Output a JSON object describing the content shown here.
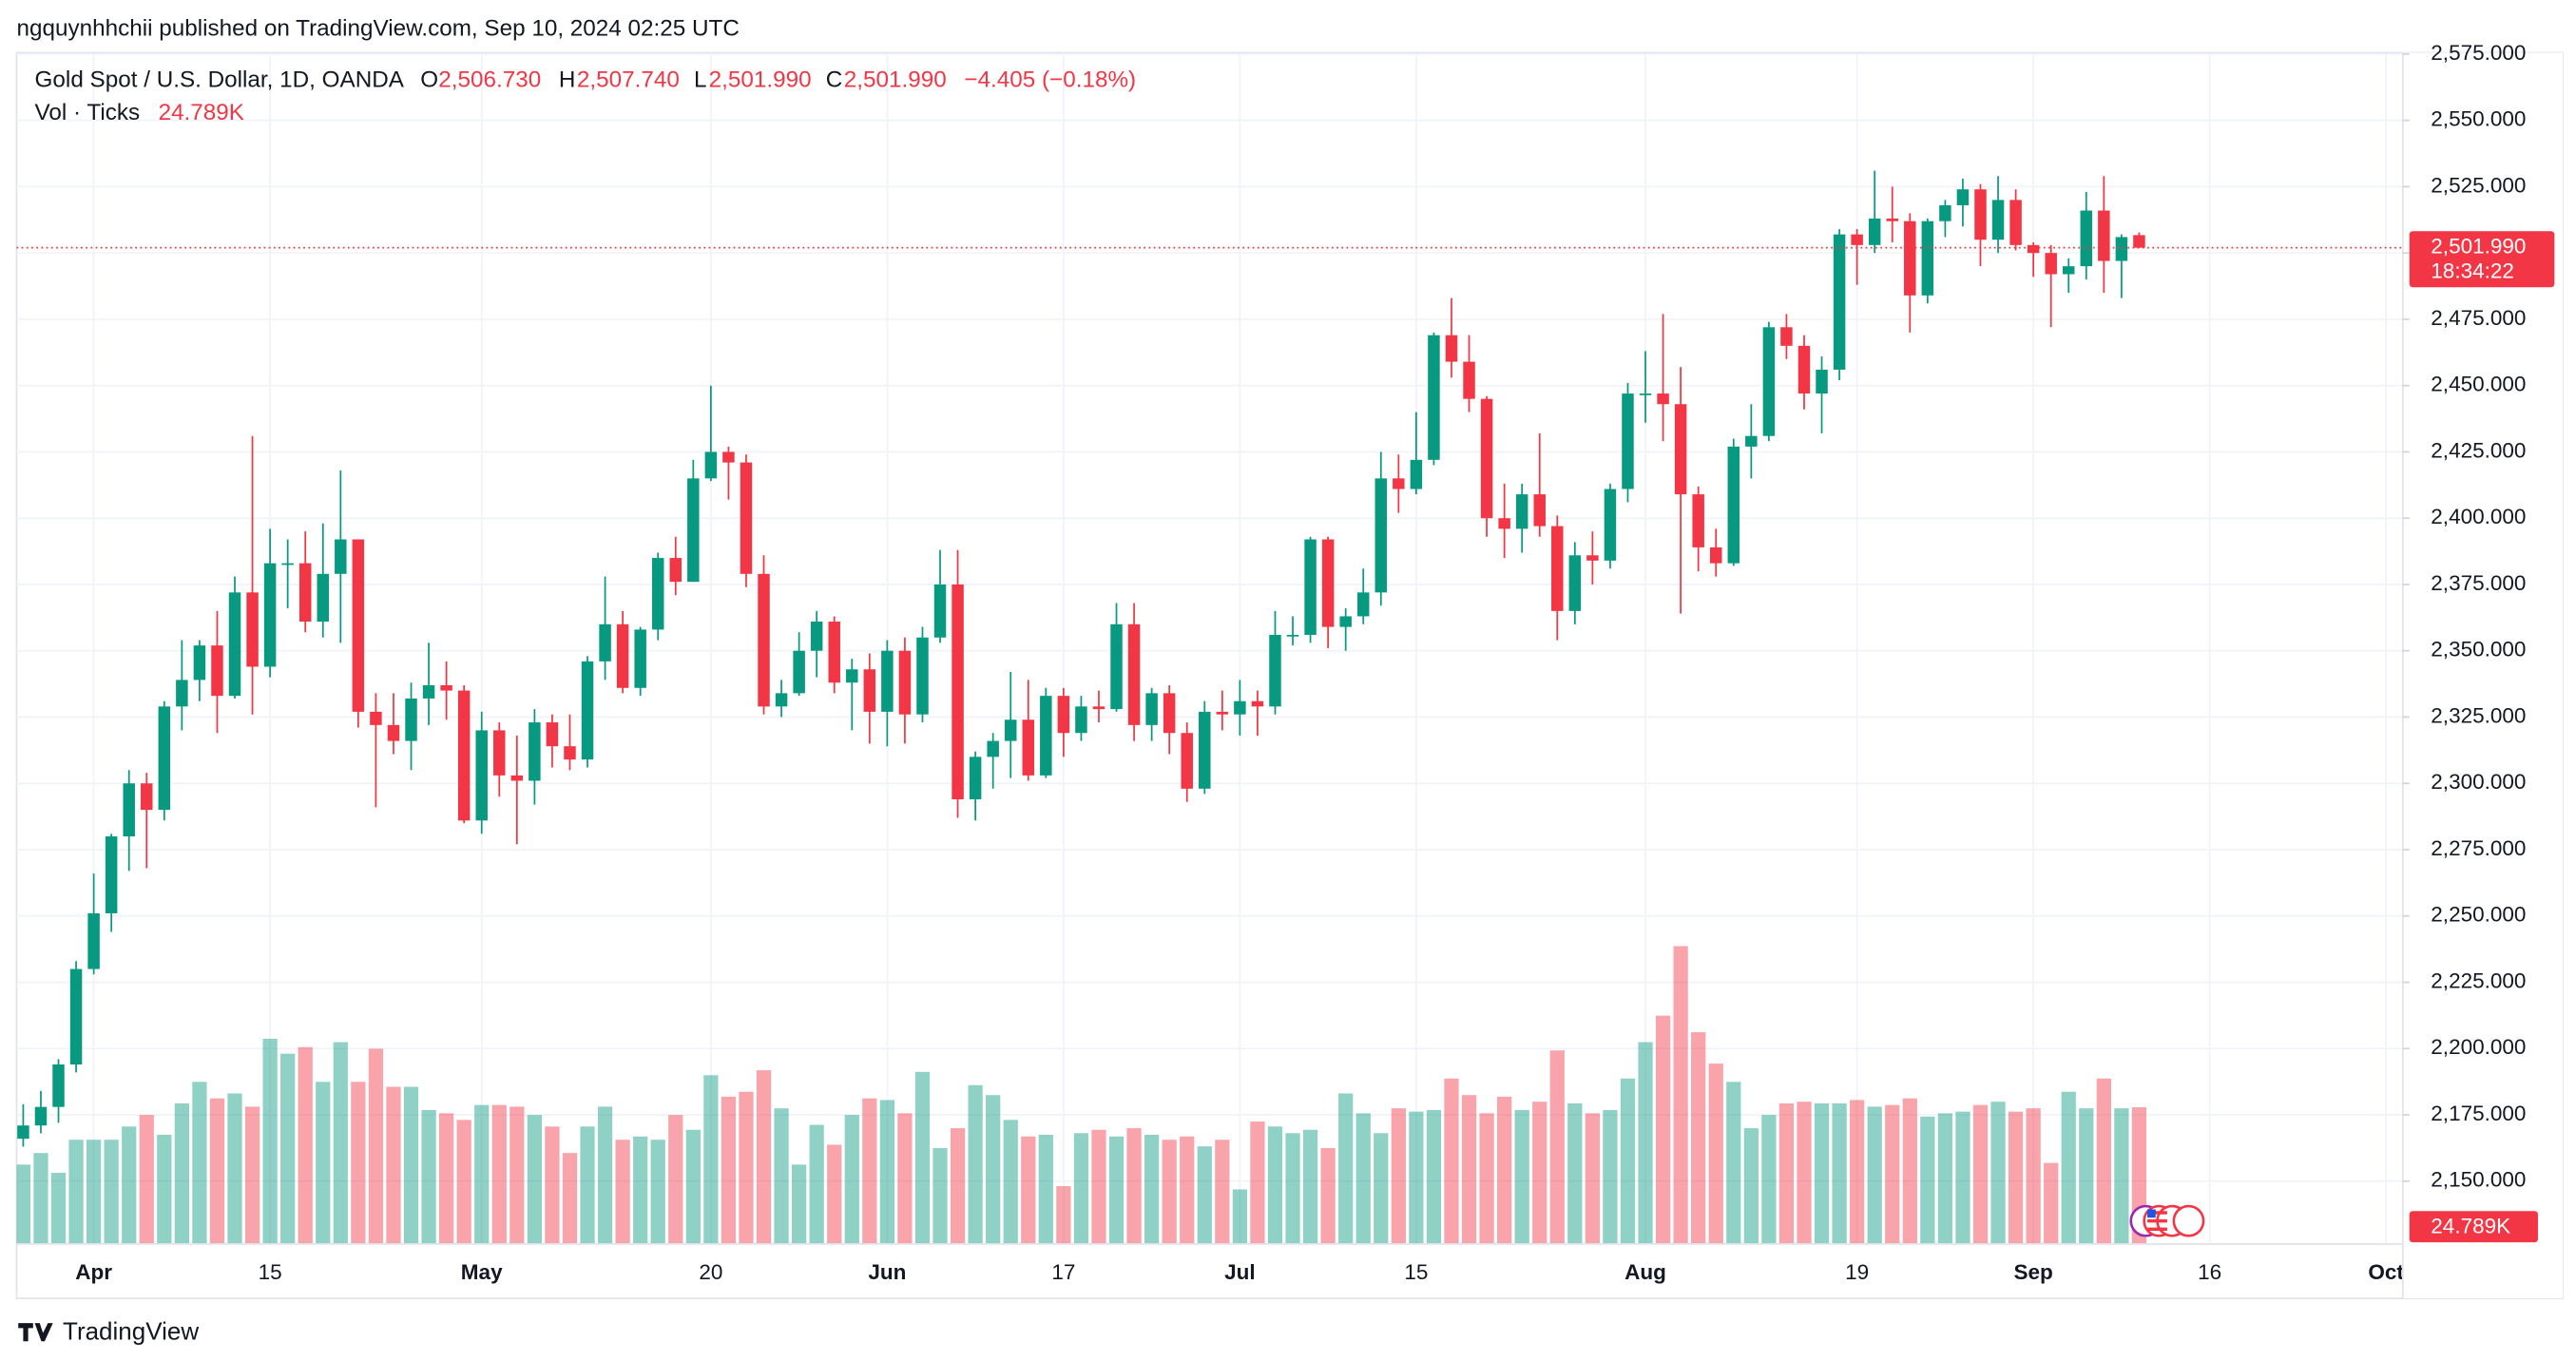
{
  "header": {
    "publisher": "ngquynhhchii published on TradingView.com, Sep 10, 2024 02:25 UTC",
    "symbol": "Gold Spot / U.S. Dollar, 1D, OANDA",
    "o_key": "O",
    "o_value": "2,506.730",
    "h_key": "H",
    "h_value": "2,507.740",
    "l_key": "L",
    "l_value": "2,501.990",
    "c_key": "C",
    "c_value": "2,501.990",
    "change": "−4.405 (−0.18%)",
    "vol_key": "Vol · Ticks",
    "vol_value": "24.789K"
  },
  "chart_data": {
    "type": "candlestick",
    "categories": [
      null,
      null,
      null,
      null,
      "Apr",
      null,
      null,
      null,
      null,
      null,
      null,
      null,
      null,
      null,
      "15",
      null,
      null,
      null,
      null,
      null,
      null,
      null,
      null,
      null,
      null,
      null,
      "May",
      null,
      null,
      null,
      null,
      null,
      null,
      null,
      null,
      null,
      null,
      null,
      null,
      "20",
      null,
      null,
      null,
      null,
      null,
      null,
      null,
      null,
      null,
      "Jun",
      null,
      null,
      null,
      null,
      null,
      null,
      null,
      null,
      null,
      "17",
      null,
      null,
      null,
      null,
      null,
      null,
      null,
      null,
      null,
      "Jul",
      null,
      null,
      null,
      null,
      null,
      null,
      null,
      null,
      null,
      "15",
      null,
      null,
      null,
      null,
      null,
      null,
      null,
      null,
      null,
      null,
      null,
      null,
      "Aug",
      null,
      null,
      null,
      null,
      null,
      null,
      null,
      null,
      null,
      null,
      null,
      "19",
      null,
      null,
      null,
      null,
      null,
      null,
      null,
      null,
      null,
      "Sep",
      null,
      null,
      null,
      null,
      null,
      null,
      null,
      null,
      null,
      "16",
      null,
      null,
      null,
      null,
      null,
      null,
      null,
      null,
      null,
      "Oct"
    ],
    "open": [
      2166,
      2171,
      2178,
      2194,
      2230,
      2251,
      2280,
      2300,
      2290,
      2329,
      2339,
      2352,
      2333,
      2372,
      2344,
      2383,
      2383,
      2361,
      2379,
      2392,
      2327,
      2322,
      2316,
      2332,
      2337,
      2335,
      2286,
      2320,
      2303,
      2301,
      2323,
      2314,
      2309,
      2346,
      2360,
      2336,
      2358,
      2385,
      2376,
      2415,
      2425,
      2421,
      2379,
      2329,
      2334,
      2350,
      2361,
      2338,
      2343,
      2327,
      2350,
      2326,
      2355,
      2375,
      2294,
      2310,
      2316,
      2324,
      2303,
      2333,
      2319,
      2329,
      2328,
      2360,
      2322,
      2334,
      2319,
      2298,
      2327,
      2326,
      2331,
      2329,
      2356,
      2356,
      2392,
      2359,
      2363,
      2372,
      2415,
      2411,
      2422,
      2469,
      2459,
      2445,
      2400,
      2396,
      2409,
      2397,
      2365,
      2386,
      2384,
      2411,
      2447,
      2447,
      2443,
      2409,
      2389,
      2383,
      2427,
      2431,
      2472,
      2465,
      2447,
      2456,
      2507,
      2503,
      2513,
      2512,
      2484,
      2512,
      2518,
      2524,
      2505,
      2520,
      2503,
      2500,
      2492,
      2495,
      2516,
      2497,
      2506.73,
      null,
      null,
      null,
      null,
      null,
      null,
      null,
      null,
      null,
      null,
      null,
      null,
      null,
      null
    ],
    "high": [
      2179,
      2184,
      2196,
      2233,
      2266,
      2281,
      2305,
      2304,
      2331,
      2354,
      2354,
      2365,
      2378,
      2431,
      2396,
      2392,
      2395,
      2398,
      2418,
      2392,
      2334,
      2334,
      2338,
      2353,
      2346,
      2337,
      2327,
      2323,
      2318,
      2328,
      2326,
      2326,
      2348,
      2378,
      2365,
      2359,
      2387,
      2393,
      2422,
      2450,
      2427,
      2424,
      2386,
      2339,
      2357,
      2365,
      2363,
      2347,
      2349,
      2354,
      2355,
      2359,
      2388,
      2388,
      2312,
      2319,
      2342,
      2339,
      2336,
      2336,
      2333,
      2335,
      2368,
      2368,
      2336,
      2337,
      2323,
      2331,
      2335,
      2339,
      2335,
      2365,
      2363,
      2393,
      2393,
      2366,
      2381,
      2425,
      2424,
      2440,
      2470,
      2483,
      2469,
      2446,
      2413,
      2413,
      2432,
      2401,
      2391,
      2395,
      2413,
      2451,
      2463,
      2477,
      2457,
      2412,
      2396,
      2430,
      2443,
      2474,
      2477,
      2469,
      2461,
      2509,
      2509,
      2531,
      2525,
      2515,
      2513,
      2520,
      2528,
      2526,
      2529,
      2524,
      2504,
      2503,
      2498,
      2523,
      2529,
      2507,
      2507.74,
      null,
      null,
      null,
      null,
      null,
      null,
      null,
      null,
      null,
      null,
      null,
      null,
      null,
      null
    ],
    "low": [
      2163,
      2168,
      2172,
      2191,
      2228,
      2244,
      2267,
      2268,
      2286,
      2320,
      2331,
      2319,
      2332,
      2326,
      2340,
      2366,
      2357,
      2355,
      2353,
      2321,
      2291,
      2311,
      2305,
      2322,
      2324,
      2285,
      2281,
      2295,
      2277,
      2292,
      2306,
      2305,
      2306,
      2339,
      2334,
      2333,
      2354,
      2371,
      2376,
      2414,
      2407,
      2374,
      2326,
      2325,
      2333,
      2340,
      2334,
      2320,
      2315,
      2314,
      2315,
      2323,
      2353,
      2287,
      2286,
      2298,
      2302,
      2301,
      2302,
      2310,
      2316,
      2323,
      2327,
      2316,
      2316,
      2311,
      2293,
      2296,
      2320,
      2318,
      2318,
      2326,
      2352,
      2353,
      2351,
      2350,
      2360,
      2367,
      2402,
      2409,
      2420,
      2453,
      2440,
      2393,
      2385,
      2387,
      2393,
      2354,
      2360,
      2375,
      2381,
      2406,
      2436,
      2429,
      2364,
      2380,
      2378,
      2382,
      2415,
      2429,
      2460,
      2441,
      2432,
      2452,
      2488,
      2500,
      2504,
      2470,
      2481,
      2506,
      2510,
      2495,
      2500,
      2501,
      2491,
      2472,
      2485,
      2490,
      2485,
      2483,
      2501.99,
      null,
      null,
      null,
      null,
      null,
      null,
      null,
      null,
      null,
      null,
      null,
      null,
      null,
      null
    ],
    "close": [
      2171,
      2178,
      2194,
      2230,
      2251,
      2280,
      2300,
      2290,
      2329,
      2339,
      2352,
      2333,
      2372,
      2344,
      2383,
      2383,
      2361,
      2379,
      2392,
      2327,
      2322,
      2316,
      2332,
      2337,
      2335,
      2286,
      2320,
      2303,
      2301,
      2323,
      2314,
      2309,
      2346,
      2360,
      2336,
      2358,
      2385,
      2376,
      2415,
      2425,
      2421,
      2379,
      2329,
      2334,
      2350,
      2361,
      2338,
      2343,
      2327,
      2350,
      2326,
      2355,
      2375,
      2294,
      2310,
      2316,
      2324,
      2303,
      2333,
      2319,
      2329,
      2328,
      2360,
      2322,
      2334,
      2319,
      2298,
      2327,
      2326,
      2331,
      2329,
      2356,
      2356,
      2392,
      2359,
      2363,
      2372,
      2415,
      2411,
      2422,
      2469,
      2459,
      2445,
      2400,
      2396,
      2409,
      2397,
      2365,
      2386,
      2384,
      2411,
      2447,
      2447,
      2443,
      2409,
      2389,
      2383,
      2427,
      2431,
      2472,
      2465,
      2447,
      2456,
      2507,
      2503,
      2513,
      2512,
      2484,
      2512,
      2518,
      2524,
      2505,
      2520,
      2503,
      2500,
      2492,
      2495,
      2516,
      2497,
      2506,
      2501.99,
      null,
      null,
      null,
      null,
      null,
      null,
      null,
      null,
      null,
      null,
      null,
      null,
      null,
      null
    ],
    "volume": [
      14400,
      16500,
      12900,
      18900,
      18900,
      18900,
      21300,
      23400,
      19800,
      25500,
      29400,
      26400,
      27300,
      24900,
      37200,
      34500,
      35700,
      29400,
      36600,
      29400,
      35400,
      28500,
      28500,
      24300,
      23700,
      22500,
      25200,
      25200,
      24900,
      23400,
      21300,
      16500,
      21300,
      24900,
      18900,
      19500,
      18900,
      23400,
      20700,
      30600,
      26700,
      27600,
      31500,
      24600,
      14400,
      21600,
      18000,
      23400,
      26400,
      26100,
      23700,
      31200,
      17400,
      21000,
      28800,
      27000,
      22500,
      19500,
      19800,
      10500,
      20100,
      20700,
      19500,
      21000,
      19800,
      18900,
      19500,
      17700,
      18900,
      9900,
      22200,
      21300,
      20100,
      20700,
      17400,
      27300,
      23700,
      20100,
      24600,
      24000,
      24300,
      30000,
      27000,
      23700,
      26700,
      24300,
      25800,
      35100,
      25500,
      23700,
      24300,
      30000,
      36600,
      41400,
      54000,
      38400,
      32700,
      29400,
      21000,
      23400,
      25500,
      25800,
      25500,
      25500,
      26100,
      24900,
      25200,
      26400,
      23100,
      23700,
      24000,
      25200,
      25800,
      24000,
      24600,
      14700,
      27600,
      24600,
      30000,
      24600,
      24789,
      null,
      null,
      null,
      null,
      null,
      null,
      null,
      null,
      null,
      null,
      null,
      null,
      null,
      null
    ],
    "up_color": "#089981",
    "down_color": "#f23645",
    "ylim": [
      2126.3,
      2578
    ],
    "yticks": [
      {
        "value": 2150,
        "label": "2,150.000"
      },
      {
        "value": 2175,
        "label": "2,175.000"
      },
      {
        "value": 2200,
        "label": "2,200.000"
      },
      {
        "value": 2225,
        "label": "2,225.000"
      },
      {
        "value": 2250,
        "label": "2,250.000"
      },
      {
        "value": 2275,
        "label": "2,275.000"
      },
      {
        "value": 2300,
        "label": "2,300.000"
      },
      {
        "value": 2325,
        "label": "2,325.000"
      },
      {
        "value": 2350,
        "label": "2,350.000"
      },
      {
        "value": 2375,
        "label": "2,375.000"
      },
      {
        "value": 2400,
        "label": "2,400.000"
      },
      {
        "value": 2425,
        "label": "2,425.000"
      },
      {
        "value": 2450,
        "label": "2,450.000"
      },
      {
        "value": 2475,
        "label": "2,475.000"
      },
      {
        "value": 2500,
        "label": "2,500.000"
      },
      {
        "value": 2525,
        "label": "2,525.000"
      },
      {
        "value": 2550,
        "label": "2,550.000"
      },
      {
        "value": 2575,
        "label": "2,575.000"
      }
    ],
    "grid": true,
    "last_price": {
      "value": 2501.99,
      "label": "2,501.990"
    },
    "countdown": "18:34:22",
    "volume_label": "24.789K"
  },
  "footer": {
    "brand": "TradingView"
  }
}
